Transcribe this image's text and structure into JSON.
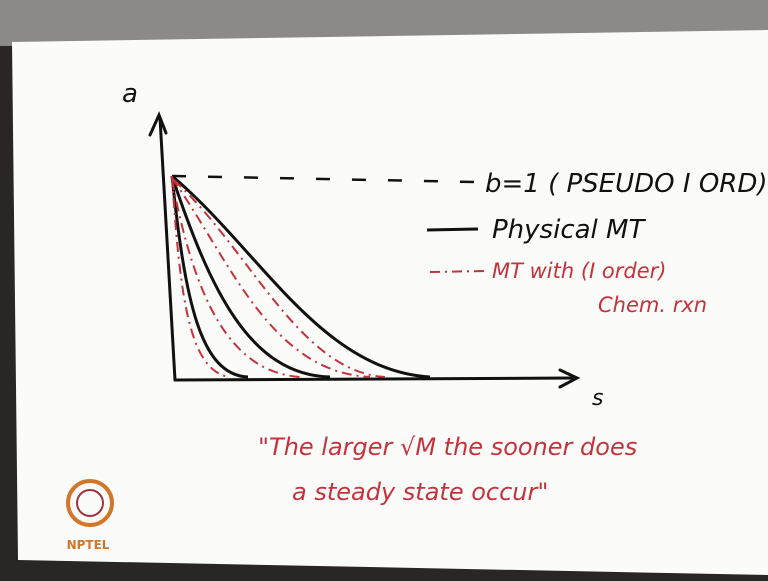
{
  "axes": {
    "y_label": "a",
    "x_label": "s"
  },
  "reference": "b=1 ( PSEUDO I ORD)",
  "legend": {
    "solid": "Physical MT",
    "dashed_line1": "MT with (I order)",
    "dashed_line2": "Chem. rxn"
  },
  "note": {
    "line1": "\"The larger √M the sooner does",
    "line2": "a steady state occur\""
  },
  "logo": "NPTEL"
}
